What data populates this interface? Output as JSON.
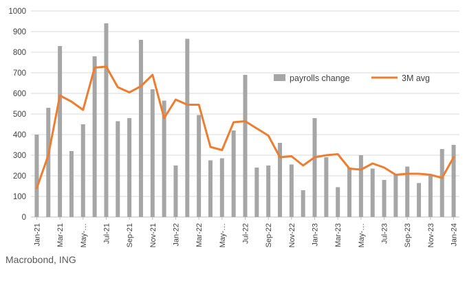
{
  "footer": {
    "source": "Macrobond, ING"
  },
  "colors": {
    "bar": "#a6a6a6",
    "line": "#ed7d31",
    "grid": "#d9d9d9",
    "axis_line": "#bfbfbf",
    "tick_text": "#404040",
    "legend_text": "#404040"
  },
  "chart_data": {
    "type": "bar",
    "title": "",
    "xlabel": "",
    "ylabel": "",
    "ylim": [
      0,
      1000
    ],
    "ytick_step": 100,
    "grid": true,
    "legend_position": "inside-top-right",
    "categories": [
      "Jan-21",
      "Feb-21",
      "Mar-21",
      "Apr-21",
      "May-21",
      "Jun-21",
      "Jul-21",
      "Aug-21",
      "Sep-21",
      "Oct-21",
      "Nov-21",
      "Dec-21",
      "Jan-22",
      "Feb-22",
      "Mar-22",
      "Apr-22",
      "May-22",
      "Jun-22",
      "Jul-22",
      "Aug-22",
      "Sep-22",
      "Oct-22",
      "Nov-22",
      "Dec-22",
      "Jan-23",
      "Feb-23",
      "Mar-23",
      "Apr-23",
      "May-23",
      "Jun-23",
      "Jul-23",
      "Aug-23",
      "Sep-23",
      "Oct-23",
      "Nov-23",
      "Dec-23",
      "Jan-24"
    ],
    "x_tick_label_indices": [
      0,
      2,
      4,
      6,
      8,
      10,
      12,
      14,
      16,
      18,
      20,
      22,
      24,
      26,
      28,
      30,
      32,
      34,
      36
    ],
    "x_tick_labels": [
      "Jan-21",
      "Mar-21",
      "May-…",
      "Jul-21",
      "Sep-21",
      "Nov-21",
      "Jan-22",
      "Mar-22",
      "May-…",
      "Jul-22",
      "Sep-22",
      "Nov-22",
      "Jan-23",
      "Mar-23",
      "May-…",
      "Jul-23",
      "Sep-23",
      "Nov-23",
      "Jan-24"
    ],
    "series": [
      {
        "name": "payrolls change",
        "type": "bar",
        "values": [
          400,
          530,
          830,
          320,
          450,
          780,
          940,
          465,
          480,
          860,
          620,
          565,
          250,
          865,
          495,
          275,
          285,
          420,
          690,
          240,
          250,
          360,
          255,
          130,
          480,
          290,
          145,
          240,
          300,
          235,
          180,
          210,
          245,
          165,
          200,
          330,
          350
        ]
      },
      {
        "name": "3M avg",
        "type": "line",
        "values": [
          140,
          300,
          590,
          560,
          520,
          725,
          730,
          630,
          605,
          635,
          690,
          480,
          570,
          545,
          545,
          340,
          325,
          460,
          465,
          430,
          395,
          290,
          295,
          250,
          290,
          300,
          305,
          235,
          230,
          260,
          240,
          205,
          210,
          210,
          205,
          190,
          290
        ]
      }
    ]
  }
}
